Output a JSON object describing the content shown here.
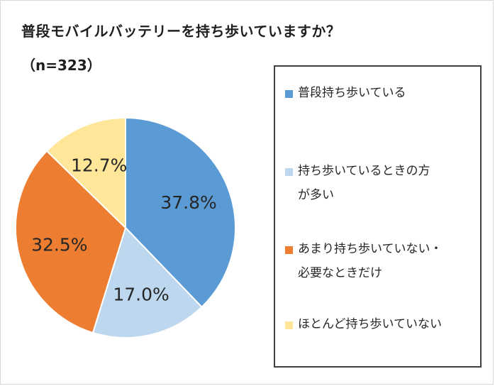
{
  "title": "普段モバイルバッテリーを持ち歩いていますか？",
  "subtitle": "（n=323）",
  "chart_data": {
    "type": "pie",
    "title": "普段モバイルバッテリーを持ち歩いていますか？",
    "subtitle": "（n=323）",
    "legend_position": "right",
    "slices": [
      {
        "label": "普段持ち歩いている",
        "value": 37.8,
        "display": "37.8%",
        "color": "#5b9bd5"
      },
      {
        "label": "持ち歩いているときの方\nが多い",
        "value": 17.0,
        "display": "17.0%",
        "color": "#bdd7ee"
      },
      {
        "label": "あまり持ち歩いていない・\n必要なときだけ",
        "value": 32.5,
        "display": "32.5%",
        "color": "#ed7d31"
      },
      {
        "label": "ほとんど持ち歩いていない",
        "value": 12.7,
        "display": "12.7%",
        "color": "#ffe699"
      }
    ]
  }
}
